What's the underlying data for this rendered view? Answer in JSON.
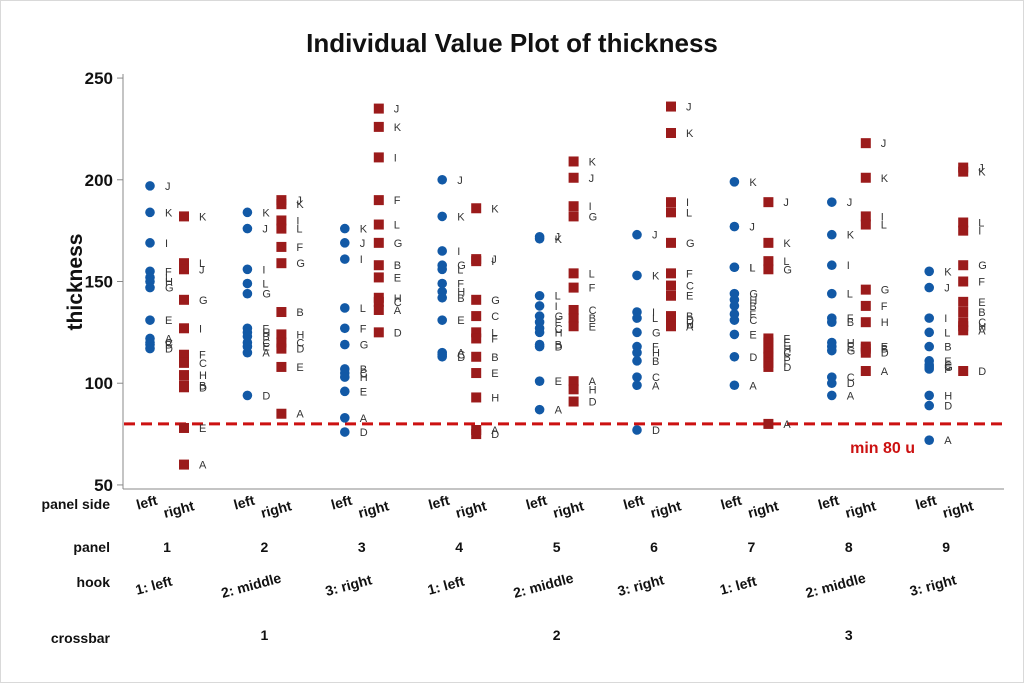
{
  "chart_data": {
    "type": "scatter",
    "title": "Individual Value Plot of thickness",
    "ylabel": "thickness",
    "ylim": [
      48,
      252
    ],
    "yticks": [
      50,
      100,
      150,
      200,
      250
    ],
    "colors": {
      "left": "#1259a6",
      "right": "#9b1b1b",
      "reference": "#cc1111",
      "axis": "#888888"
    },
    "reference_line": {
      "value": 80,
      "label": "min 80 u"
    },
    "row_labels": {
      "panel_side": "panel side",
      "panel": "panel",
      "hook": "hook",
      "crossbar": "crossbar"
    },
    "side_labels": [
      "left",
      "right"
    ],
    "panels": [
      "1",
      "2",
      "3",
      "4",
      "5",
      "6",
      "7",
      "8",
      "9"
    ],
    "hooks": [
      "1: left",
      "2: middle",
      "3: right",
      "1: left",
      "2: middle",
      "3: right",
      "1: left",
      "2: middle",
      "3: right"
    ],
    "crossbars": [
      "1",
      "2",
      "3"
    ],
    "series": [
      {
        "name": "Panel 1 left",
        "points": [
          {
            "y": 197,
            "label": "J"
          },
          {
            "y": 184,
            "label": "K"
          },
          {
            "y": 169,
            "label": "I"
          },
          {
            "y": 155,
            "label": "F"
          },
          {
            "y": 152,
            "label": "L"
          },
          {
            "y": 150,
            "label": "H"
          },
          {
            "y": 147,
            "label": "G"
          },
          {
            "y": 131,
            "label": "E"
          },
          {
            "y": 122,
            "label": "A"
          },
          {
            "y": 120,
            "label": "C"
          },
          {
            "y": 119,
            "label": "B"
          },
          {
            "y": 117,
            "label": "D"
          }
        ]
      },
      {
        "name": "Panel 1 right",
        "points": [
          {
            "y": 182,
            "label": "K"
          },
          {
            "y": 159,
            "label": "L"
          },
          {
            "y": 156,
            "label": "J"
          },
          {
            "y": 141,
            "label": "G"
          },
          {
            "y": 127,
            "label": "I"
          },
          {
            "y": 114,
            "label": "F"
          },
          {
            "y": 110,
            "label": "C"
          },
          {
            "y": 104,
            "label": "H"
          },
          {
            "y": 99,
            "label": "B"
          },
          {
            "y": 98,
            "label": "D"
          },
          {
            "y": 78,
            "label": "E"
          },
          {
            "y": 60,
            "label": "A"
          }
        ]
      },
      {
        "name": "Panel 2 left",
        "points": [
          {
            "y": 184,
            "label": "K"
          },
          {
            "y": 176,
            "label": "J"
          },
          {
            "y": 156,
            "label": "I"
          },
          {
            "y": 149,
            "label": "L"
          },
          {
            "y": 144,
            "label": "G"
          },
          {
            "y": 127,
            "label": "F"
          },
          {
            "y": 125,
            "label": "H"
          },
          {
            "y": 123,
            "label": "B"
          },
          {
            "y": 120,
            "label": "C"
          },
          {
            "y": 118,
            "label": "E"
          },
          {
            "y": 115,
            "label": "A"
          },
          {
            "y": 94,
            "label": "D"
          }
        ]
      },
      {
        "name": "Panel 2 right",
        "points": [
          {
            "y": 190,
            "label": "J"
          },
          {
            "y": 188,
            "label": "K"
          },
          {
            "y": 180,
            "label": "I"
          },
          {
            "y": 176,
            "label": "L"
          },
          {
            "y": 167,
            "label": "F"
          },
          {
            "y": 159,
            "label": "G"
          },
          {
            "y": 135,
            "label": "B"
          },
          {
            "y": 124,
            "label": "H"
          },
          {
            "y": 120,
            "label": "C"
          },
          {
            "y": 117,
            "label": "D"
          },
          {
            "y": 108,
            "label": "E"
          },
          {
            "y": 85,
            "label": "A"
          }
        ]
      },
      {
        "name": "Panel 3 left",
        "points": [
          {
            "y": 176,
            "label": "K"
          },
          {
            "y": 169,
            "label": "J"
          },
          {
            "y": 161,
            "label": "I"
          },
          {
            "y": 137,
            "label": "L"
          },
          {
            "y": 127,
            "label": "F"
          },
          {
            "y": 119,
            "label": "G"
          },
          {
            "y": 107,
            "label": "B"
          },
          {
            "y": 105,
            "label": "C"
          },
          {
            "y": 103,
            "label": "H"
          },
          {
            "y": 96,
            "label": "E"
          },
          {
            "y": 83,
            "label": "A"
          },
          {
            "y": 76,
            "label": "D"
          }
        ]
      },
      {
        "name": "Panel 3 right",
        "points": [
          {
            "y": 235,
            "label": "J"
          },
          {
            "y": 226,
            "label": "K"
          },
          {
            "y": 211,
            "label": "I"
          },
          {
            "y": 190,
            "label": "F"
          },
          {
            "y": 178,
            "label": "L"
          },
          {
            "y": 169,
            "label": "G"
          },
          {
            "y": 158,
            "label": "B"
          },
          {
            "y": 152,
            "label": "E"
          },
          {
            "y": 142,
            "label": "H"
          },
          {
            "y": 140,
            "label": "C"
          },
          {
            "y": 136,
            "label": "A"
          },
          {
            "y": 125,
            "label": "D"
          }
        ]
      },
      {
        "name": "Panel 4 left",
        "points": [
          {
            "y": 200,
            "label": "J"
          },
          {
            "y": 182,
            "label": "K"
          },
          {
            "y": 165,
            "label": "I"
          },
          {
            "y": 158,
            "label": "G"
          },
          {
            "y": 156,
            "label": "L"
          },
          {
            "y": 149,
            "label": "F"
          },
          {
            "y": 145,
            "label": "H"
          },
          {
            "y": 142,
            "label": "B"
          },
          {
            "y": 131,
            "label": "E"
          },
          {
            "y": 115,
            "label": "A"
          },
          {
            "y": 114,
            "label": "C"
          },
          {
            "y": 113,
            "label": "D"
          }
        ]
      },
      {
        "name": "Panel 4 right",
        "points": [
          {
            "y": 186,
            "label": "K"
          },
          {
            "y": 161,
            "label": "J"
          },
          {
            "y": 160,
            "label": "I"
          },
          {
            "y": 141,
            "label": "G"
          },
          {
            "y": 133,
            "label": "C"
          },
          {
            "y": 125,
            "label": "L"
          },
          {
            "y": 122,
            "label": "F"
          },
          {
            "y": 113,
            "label": "B"
          },
          {
            "y": 105,
            "label": "E"
          },
          {
            "y": 93,
            "label": "H"
          },
          {
            "y": 77,
            "label": "A"
          },
          {
            "y": 75,
            "label": "D"
          }
        ]
      },
      {
        "name": "Panel 5 left",
        "points": [
          {
            "y": 172,
            "label": "J"
          },
          {
            "y": 171,
            "label": "K"
          },
          {
            "y": 143,
            "label": "L"
          },
          {
            "y": 138,
            "label": "I"
          },
          {
            "y": 133,
            "label": "G"
          },
          {
            "y": 130,
            "label": "F"
          },
          {
            "y": 127,
            "label": "C"
          },
          {
            "y": 125,
            "label": "H"
          },
          {
            "y": 119,
            "label": "B"
          },
          {
            "y": 118,
            "label": "D"
          },
          {
            "y": 101,
            "label": "E"
          },
          {
            "y": 87,
            "label": "A"
          }
        ]
      },
      {
        "name": "Panel 5 right",
        "points": [
          {
            "y": 209,
            "label": "K"
          },
          {
            "y": 201,
            "label": "J"
          },
          {
            "y": 187,
            "label": "I"
          },
          {
            "y": 182,
            "label": "G"
          },
          {
            "y": 154,
            "label": "L"
          },
          {
            "y": 147,
            "label": "F"
          },
          {
            "y": 136,
            "label": "C"
          },
          {
            "y": 132,
            "label": "B"
          },
          {
            "y": 128,
            "label": "E"
          },
          {
            "y": 101,
            "label": "A"
          },
          {
            "y": 97,
            "label": "H"
          },
          {
            "y": 91,
            "label": "D"
          }
        ]
      },
      {
        "name": "Panel 6 left",
        "points": [
          {
            "y": 173,
            "label": "J"
          },
          {
            "y": 153,
            "label": "K"
          },
          {
            "y": 135,
            "label": "I"
          },
          {
            "y": 132,
            "label": "L"
          },
          {
            "y": 125,
            "label": "G"
          },
          {
            "y": 118,
            "label": "F"
          },
          {
            "y": 115,
            "label": "H"
          },
          {
            "y": 111,
            "label": "B"
          },
          {
            "y": 103,
            "label": "C"
          },
          {
            "y": 99,
            "label": "A"
          },
          {
            "y": 77,
            "label": "D"
          }
        ]
      },
      {
        "name": "Panel 6 right",
        "points": [
          {
            "y": 236,
            "label": "J"
          },
          {
            "y": 223,
            "label": "K"
          },
          {
            "y": 189,
            "label": "I"
          },
          {
            "y": 184,
            "label": "L"
          },
          {
            "y": 169,
            "label": "G"
          },
          {
            "y": 154,
            "label": "F"
          },
          {
            "y": 148,
            "label": "C"
          },
          {
            "y": 143,
            "label": "E"
          },
          {
            "y": 133,
            "label": "B"
          },
          {
            "y": 131,
            "label": "D"
          },
          {
            "y": 129,
            "label": "H"
          },
          {
            "y": 128,
            "label": "A"
          }
        ]
      },
      {
        "name": "Panel 7 left",
        "points": [
          {
            "y": 199,
            "label": "K"
          },
          {
            "y": 177,
            "label": "J"
          },
          {
            "y": 157,
            "label": "I"
          },
          {
            "y": 157,
            "label": "L"
          },
          {
            "y": 144,
            "label": "G"
          },
          {
            "y": 141,
            "label": "H"
          },
          {
            "y": 138,
            "label": "B"
          },
          {
            "y": 134,
            "label": "F"
          },
          {
            "y": 131,
            "label": "C"
          },
          {
            "y": 124,
            "label": "E"
          },
          {
            "y": 113,
            "label": "D"
          },
          {
            "y": 99,
            "label": "A"
          }
        ]
      },
      {
        "name": "Panel 7 right",
        "points": [
          {
            "y": 189,
            "label": "J"
          },
          {
            "y": 169,
            "label": "K"
          },
          {
            "y": 160,
            "label": "L"
          },
          {
            "y": 156,
            "label": "G"
          },
          {
            "y": 122,
            "label": "F"
          },
          {
            "y": 120,
            "label": "E"
          },
          {
            "y": 117,
            "label": "H"
          },
          {
            "y": 115,
            "label": "C"
          },
          {
            "y": 113,
            "label": "B"
          },
          {
            "y": 110,
            "label": "I"
          },
          {
            "y": 108,
            "label": "D"
          },
          {
            "y": 80,
            "label": "A"
          }
        ]
      },
      {
        "name": "Panel 8 left",
        "points": [
          {
            "y": 189,
            "label": "J"
          },
          {
            "y": 173,
            "label": "K"
          },
          {
            "y": 158,
            "label": "I"
          },
          {
            "y": 144,
            "label": "L"
          },
          {
            "y": 132,
            "label": "F"
          },
          {
            "y": 130,
            "label": "B"
          },
          {
            "y": 120,
            "label": "H"
          },
          {
            "y": 118,
            "label": "E"
          },
          {
            "y": 116,
            "label": "G"
          },
          {
            "y": 103,
            "label": "C"
          },
          {
            "y": 100,
            "label": "D"
          },
          {
            "y": 94,
            "label": "A"
          }
        ]
      },
      {
        "name": "Panel 8 right",
        "points": [
          {
            "y": 218,
            "label": "J"
          },
          {
            "y": 201,
            "label": "K"
          },
          {
            "y": 182,
            "label": "I"
          },
          {
            "y": 178,
            "label": "L"
          },
          {
            "y": 146,
            "label": "G"
          },
          {
            "y": 138,
            "label": "F"
          },
          {
            "y": 130,
            "label": "H"
          },
          {
            "y": 118,
            "label": "E"
          },
          {
            "y": 117,
            "label": "B"
          },
          {
            "y": 115,
            "label": "D"
          },
          {
            "y": 106,
            "label": "A"
          }
        ]
      },
      {
        "name": "Panel 9 left",
        "points": [
          {
            "y": 155,
            "label": "K"
          },
          {
            "y": 147,
            "label": "J"
          },
          {
            "y": 132,
            "label": "I"
          },
          {
            "y": 125,
            "label": "L"
          },
          {
            "y": 118,
            "label": "B"
          },
          {
            "y": 111,
            "label": "E"
          },
          {
            "y": 109,
            "label": "C"
          },
          {
            "y": 108,
            "label": "G"
          },
          {
            "y": 107,
            "label": "F"
          },
          {
            "y": 94,
            "label": "H"
          },
          {
            "y": 89,
            "label": "D"
          },
          {
            "y": 72,
            "label": "A"
          }
        ]
      },
      {
        "name": "Panel 9 right",
        "points": [
          {
            "y": 206,
            "label": "J"
          },
          {
            "y": 204,
            "label": "K"
          },
          {
            "y": 179,
            "label": "L"
          },
          {
            "y": 175,
            "label": "I"
          },
          {
            "y": 158,
            "label": "G"
          },
          {
            "y": 150,
            "label": "F"
          },
          {
            "y": 140,
            "label": "E"
          },
          {
            "y": 135,
            "label": "B"
          },
          {
            "y": 130,
            "label": "C"
          },
          {
            "y": 128,
            "label": "H"
          },
          {
            "y": 126,
            "label": "A"
          },
          {
            "y": 106,
            "label": "D"
          }
        ]
      }
    ]
  }
}
